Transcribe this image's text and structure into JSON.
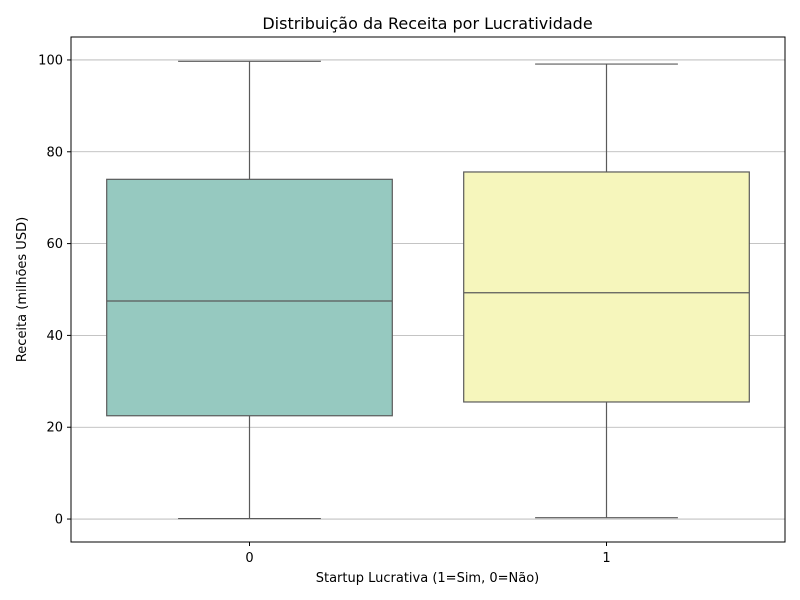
{
  "chart_data": {
    "type": "box",
    "title": "Distribuição da Receita por Lucratividade",
    "xlabel": "Startup Lucrativa (1=Sim, 0=Não)",
    "ylabel": "Receita (milhões USD)",
    "categories": [
      "0",
      "1"
    ],
    "ylim": [
      -5,
      105
    ],
    "yticks": [
      0,
      20,
      40,
      60,
      80,
      100
    ],
    "grid": "y",
    "boxes": [
      {
        "category": "0",
        "min": 0.1,
        "q1": 22.5,
        "median": 47.5,
        "q3": 74.0,
        "max": 99.7,
        "color": "#96c9c0"
      },
      {
        "category": "1",
        "min": 0.3,
        "q1": 25.5,
        "median": 49.3,
        "q3": 75.6,
        "max": 99.1,
        "color": "#f6f6bc"
      }
    ]
  }
}
